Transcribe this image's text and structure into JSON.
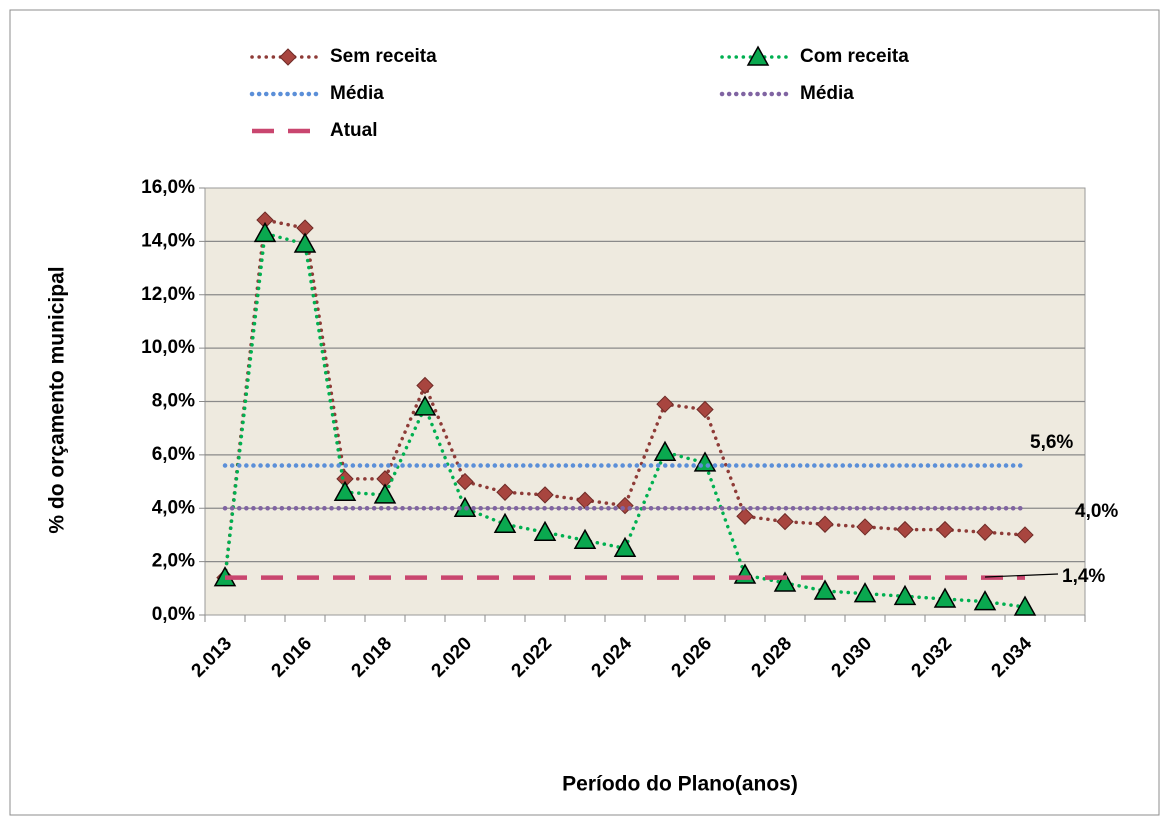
{
  "chart_data": {
    "type": "line",
    "xlabel": "Período do Plano(anos)",
    "ylabel": "% do orçamento municipal",
    "categories": [
      "2.013",
      null,
      "2.016",
      null,
      "2.018",
      null,
      "2.020",
      null,
      "2.022",
      null,
      "2.024",
      null,
      "2.026",
      null,
      "2.028",
      null,
      "2.030",
      null,
      "2.032",
      null,
      "2.034"
    ],
    "ylim": [
      0,
      16
    ],
    "yticks": [
      {
        "value": 0,
        "label": "0,0%"
      },
      {
        "value": 2,
        "label": "2,0%"
      },
      {
        "value": 4,
        "label": "4,0%"
      },
      {
        "value": 6,
        "label": "6,0%"
      },
      {
        "value": 8,
        "label": "8,0%"
      },
      {
        "value": 10,
        "label": "10,0%"
      },
      {
        "value": 12,
        "label": "12,0%"
      },
      {
        "value": 14,
        "label": "14,0%"
      },
      {
        "value": 16,
        "label": "16,0%"
      }
    ],
    "grid": true,
    "legend": "top",
    "series": [
      {
        "name": "Sem receita",
        "color": "#8e3b37",
        "marker": "diamond",
        "marker_color": "#a8453f",
        "dash": "dot",
        "values": [
          1.4,
          14.8,
          14.5,
          5.1,
          5.1,
          8.6,
          5.0,
          4.6,
          4.5,
          4.3,
          4.1,
          7.9,
          7.7,
          3.7,
          3.5,
          3.4,
          3.3,
          3.2,
          3.2,
          3.1,
          3.0
        ]
      },
      {
        "name": "Com  receita",
        "color": "#00b050",
        "marker": "triangle",
        "marker_color": "#0aa84f",
        "dash": "dot",
        "values": [
          1.4,
          14.3,
          13.9,
          4.6,
          4.5,
          7.8,
          4.0,
          3.4,
          3.1,
          2.8,
          2.5,
          6.1,
          5.7,
          1.5,
          1.2,
          0.9,
          0.8,
          0.7,
          0.6,
          0.5,
          0.3
        ]
      },
      {
        "name": "Média",
        "color": "#5b8fd8",
        "marker": null,
        "dash": "dot",
        "values": [
          5.6,
          5.6,
          5.6,
          5.6,
          5.6,
          5.6,
          5.6,
          5.6,
          5.6,
          5.6,
          5.6,
          5.6,
          5.6,
          5.6,
          5.6,
          5.6,
          5.6,
          5.6,
          5.6,
          5.6,
          5.6
        ]
      },
      {
        "name": "Média",
        "color": "#8064a2",
        "marker": null,
        "dash": "dot",
        "values": [
          4.0,
          4.0,
          4.0,
          4.0,
          4.0,
          4.0,
          4.0,
          4.0,
          4.0,
          4.0,
          4.0,
          4.0,
          4.0,
          4.0,
          4.0,
          4.0,
          4.0,
          4.0,
          4.0,
          4.0,
          4.0
        ]
      },
      {
        "name": "Atual",
        "color": "#c9466f",
        "marker": null,
        "dash": "dash",
        "values": [
          1.4,
          1.4,
          1.4,
          1.4,
          1.4,
          1.4,
          1.4,
          1.4,
          1.4,
          1.4,
          1.4,
          1.4,
          1.4,
          1.4,
          1.4,
          1.4,
          1.4,
          1.4,
          1.4,
          1.4,
          1.4
        ]
      }
    ],
    "annotations": [
      "5,6%",
      "4,0%",
      "1,4%"
    ]
  }
}
